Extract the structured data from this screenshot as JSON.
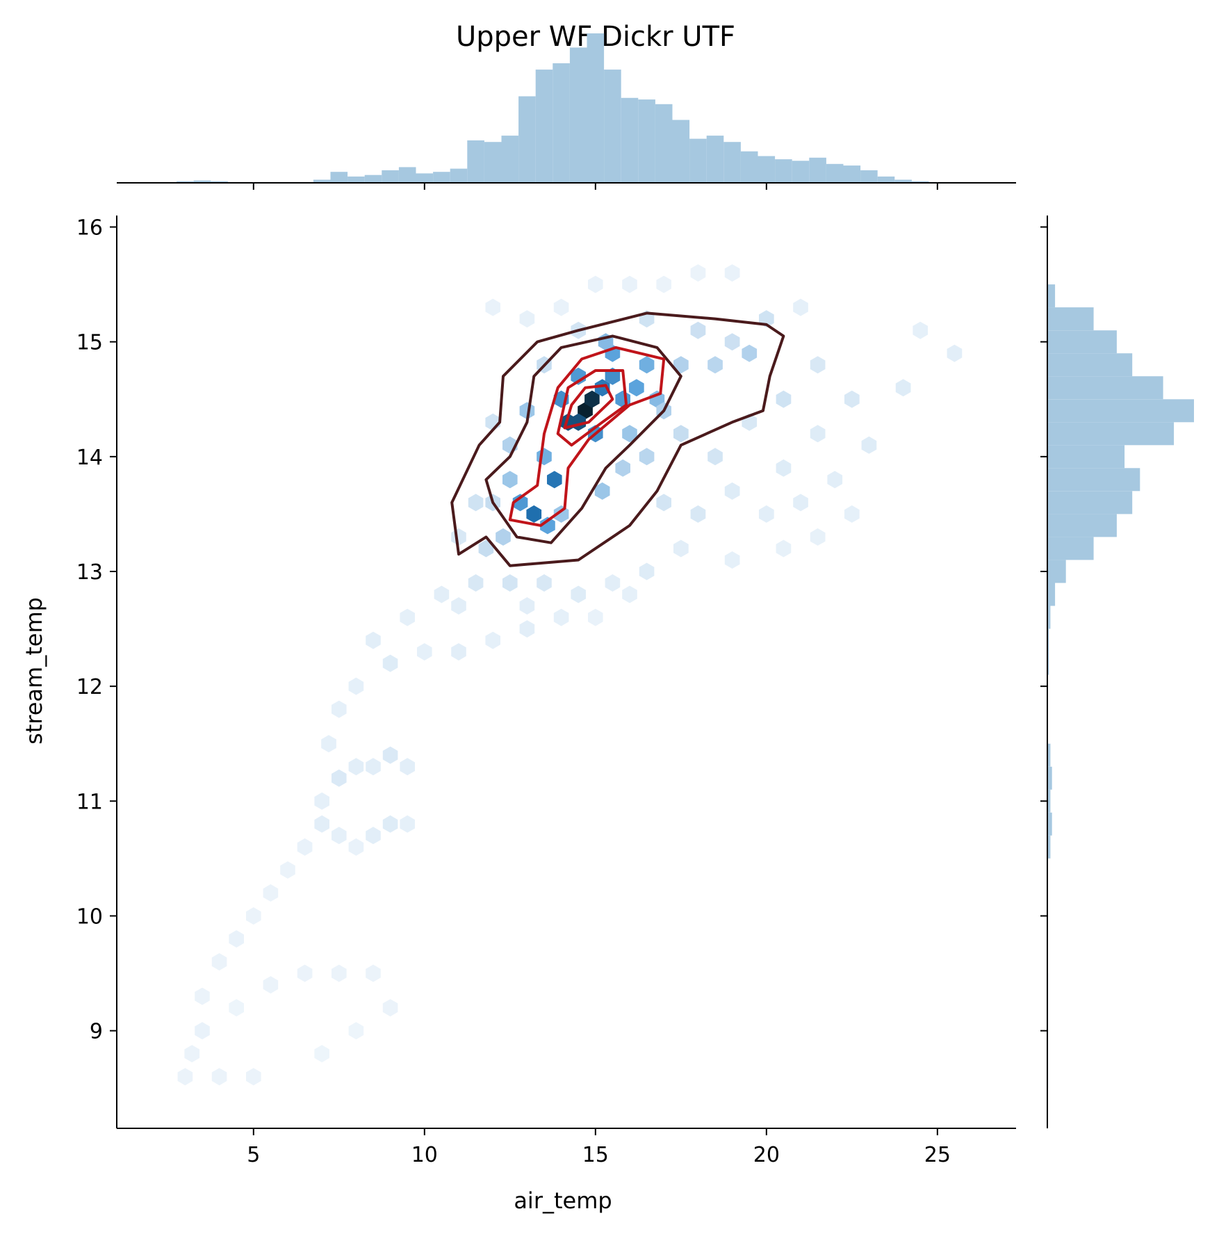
{
  "chart_data": {
    "type": "hexbin",
    "title": "Upper WF Dickr UTF",
    "xlabel": "air_temp",
    "ylabel": "stream_temp",
    "xlim": [
      1.0,
      27.3
    ],
    "ylim": [
      8.15,
      16.1
    ],
    "xticks": [
      5,
      10,
      15,
      20,
      25
    ],
    "yticks": [
      9,
      10,
      11,
      12,
      13,
      14,
      15,
      16
    ],
    "colors": {
      "hist": "#a6c8e0",
      "hex_dark": "#08212f",
      "hex_light": "#eef5fb",
      "contour_outer": "#4a1a1c",
      "contour_inner": "#c0141a"
    },
    "hexbin_cells": [
      [
        14.7,
        14.4,
        1.0
      ],
      [
        14.9,
        14.5,
        0.95
      ],
      [
        14.2,
        14.3,
        0.85
      ],
      [
        14.5,
        14.3,
        0.85
      ],
      [
        15.2,
        14.6,
        0.7
      ],
      [
        13.2,
        13.5,
        0.75
      ],
      [
        13.8,
        13.8,
        0.72
      ],
      [
        15.5,
        14.7,
        0.6
      ],
      [
        15.8,
        14.5,
        0.55
      ],
      [
        16.2,
        14.6,
        0.5
      ],
      [
        14.0,
        14.5,
        0.6
      ],
      [
        15.0,
        14.2,
        0.6
      ],
      [
        13.5,
        14.0,
        0.45
      ],
      [
        12.8,
        13.6,
        0.55
      ],
      [
        13.6,
        13.4,
        0.5
      ],
      [
        16.5,
        14.8,
        0.45
      ],
      [
        15.5,
        14.9,
        0.5
      ],
      [
        14.5,
        14.7,
        0.55
      ],
      [
        15.3,
        15.0,
        0.4
      ],
      [
        16.8,
        14.5,
        0.4
      ],
      [
        14.0,
        13.5,
        0.35
      ],
      [
        12.5,
        13.8,
        0.35
      ],
      [
        12.3,
        13.3,
        0.3
      ],
      [
        11.8,
        13.2,
        0.25
      ],
      [
        12.0,
        13.6,
        0.25
      ],
      [
        16.0,
        14.2,
        0.35
      ],
      [
        17.0,
        14.4,
        0.3
      ],
      [
        18.5,
        14.8,
        0.28
      ],
      [
        19.5,
        14.9,
        0.3
      ],
      [
        20.5,
        14.5,
        0.2
      ],
      [
        15.8,
        13.9,
        0.3
      ],
      [
        15.2,
        13.7,
        0.35
      ],
      [
        16.5,
        14.0,
        0.28
      ],
      [
        17.5,
        14.2,
        0.25
      ],
      [
        17.5,
        14.8,
        0.3
      ],
      [
        18.0,
        15.1,
        0.22
      ],
      [
        19.0,
        15.0,
        0.22
      ],
      [
        20.0,
        15.2,
        0.2
      ],
      [
        21.5,
        14.8,
        0.15
      ],
      [
        22.5,
        14.5,
        0.15
      ],
      [
        23.0,
        14.1,
        0.12
      ],
      [
        24.0,
        14.6,
        0.12
      ],
      [
        25.5,
        14.9,
        0.1
      ],
      [
        24.5,
        15.1,
        0.08
      ],
      [
        21.0,
        15.3,
        0.08
      ],
      [
        18.5,
        14.0,
        0.18
      ],
      [
        19.5,
        14.3,
        0.15
      ],
      [
        20.5,
        13.9,
        0.12
      ],
      [
        21.5,
        14.2,
        0.12
      ],
      [
        22.0,
        13.8,
        0.1
      ],
      [
        17.0,
        13.6,
        0.18
      ],
      [
        18.0,
        13.5,
        0.15
      ],
      [
        19.0,
        13.7,
        0.12
      ],
      [
        20.0,
        13.5,
        0.1
      ],
      [
        21.0,
        13.6,
        0.1
      ],
      [
        17.5,
        13.2,
        0.1
      ],
      [
        19.0,
        13.1,
        0.08
      ],
      [
        21.5,
        13.3,
        0.07
      ],
      [
        22.5,
        13.5,
        0.08
      ],
      [
        20.5,
        13.2,
        0.07
      ],
      [
        11.5,
        12.9,
        0.15
      ],
      [
        12.5,
        12.9,
        0.18
      ],
      [
        13.5,
        12.9,
        0.15
      ],
      [
        14.5,
        12.8,
        0.12
      ],
      [
        15.5,
        12.9,
        0.1
      ],
      [
        10.5,
        12.8,
        0.1
      ],
      [
        11.0,
        12.7,
        0.1
      ],
      [
        13.0,
        12.7,
        0.1
      ],
      [
        16.0,
        12.8,
        0.08
      ],
      [
        16.5,
        13.0,
        0.12
      ],
      [
        9.5,
        12.6,
        0.08
      ],
      [
        8.5,
        12.4,
        0.1
      ],
      [
        9.0,
        12.2,
        0.12
      ],
      [
        10.0,
        12.3,
        0.08
      ],
      [
        11.0,
        12.3,
        0.1
      ],
      [
        13.0,
        12.5,
        0.1
      ],
      [
        14.0,
        12.6,
        0.08
      ],
      [
        12.0,
        12.4,
        0.08
      ],
      [
        15.0,
        12.6,
        0.06
      ],
      [
        8.0,
        12.0,
        0.08
      ],
      [
        7.5,
        11.8,
        0.08
      ],
      [
        7.2,
        11.5,
        0.08
      ],
      [
        7.5,
        11.2,
        0.14
      ],
      [
        8.0,
        11.3,
        0.1
      ],
      [
        8.5,
        11.3,
        0.1
      ],
      [
        9.0,
        11.4,
        0.14
      ],
      [
        9.5,
        11.3,
        0.1
      ],
      [
        7.0,
        11.0,
        0.08
      ],
      [
        7.0,
        10.8,
        0.1
      ],
      [
        7.5,
        10.7,
        0.08
      ],
      [
        8.5,
        10.7,
        0.1
      ],
      [
        9.0,
        10.8,
        0.12
      ],
      [
        9.5,
        10.8,
        0.08
      ],
      [
        6.5,
        10.6,
        0.06
      ],
      [
        8.0,
        10.6,
        0.06
      ],
      [
        6.0,
        10.4,
        0.05
      ],
      [
        5.5,
        10.2,
        0.05
      ],
      [
        5.0,
        10.0,
        0.05
      ],
      [
        4.5,
        9.8,
        0.06
      ],
      [
        4.0,
        9.6,
        0.05
      ],
      [
        3.5,
        9.3,
        0.05
      ],
      [
        3.5,
        9.0,
        0.06
      ],
      [
        3.2,
        8.8,
        0.05
      ],
      [
        3.0,
        8.6,
        0.05
      ],
      [
        4.0,
        8.6,
        0.05
      ],
      [
        5.0,
        8.6,
        0.05
      ],
      [
        4.5,
        9.2,
        0.04
      ],
      [
        5.5,
        9.4,
        0.05
      ],
      [
        6.5,
        9.5,
        0.05
      ],
      [
        7.5,
        9.5,
        0.05
      ],
      [
        8.5,
        9.5,
        0.05
      ],
      [
        9.0,
        9.2,
        0.05
      ],
      [
        7.0,
        8.8,
        0.04
      ],
      [
        8.0,
        9.0,
        0.04
      ],
      [
        12.0,
        15.3,
        0.06
      ],
      [
        13.0,
        15.2,
        0.07
      ],
      [
        14.0,
        15.3,
        0.06
      ],
      [
        15.0,
        15.5,
        0.06
      ],
      [
        16.0,
        15.5,
        0.06
      ],
      [
        17.0,
        15.5,
        0.05
      ],
      [
        18.0,
        15.6,
        0.05
      ],
      [
        19.0,
        15.6,
        0.06
      ],
      [
        14.5,
        15.1,
        0.18
      ],
      [
        16.5,
        15.2,
        0.2
      ],
      [
        13.5,
        14.8,
        0.25
      ],
      [
        13.0,
        14.4,
        0.35
      ],
      [
        12.5,
        14.1,
        0.3
      ],
      [
        11.5,
        13.6,
        0.2
      ],
      [
        11.0,
        13.3,
        0.15
      ],
      [
        12.0,
        14.3,
        0.2
      ]
    ],
    "contours_outer": [
      [
        [
          11.8,
          13.3
        ],
        [
          11.0,
          13.15
        ],
        [
          10.8,
          13.6
        ],
        [
          11.6,
          14.1
        ],
        [
          12.2,
          14.3
        ],
        [
          12.3,
          14.7
        ],
        [
          13.3,
          15.0
        ],
        [
          14.5,
          15.1
        ],
        [
          16.5,
          15.25
        ],
        [
          18.5,
          15.2
        ],
        [
          20.0,
          15.15
        ],
        [
          20.5,
          15.05
        ],
        [
          20.1,
          14.7
        ],
        [
          19.9,
          14.4
        ],
        [
          19.0,
          14.3
        ],
        [
          17.5,
          14.1
        ],
        [
          16.8,
          13.7
        ],
        [
          16.0,
          13.4
        ],
        [
          14.5,
          13.1
        ],
        [
          12.5,
          13.05
        ],
        [
          11.8,
          13.3
        ]
      ],
      [
        [
          12.0,
          13.6
        ],
        [
          11.8,
          13.8
        ],
        [
          12.5,
          14.0
        ],
        [
          13.0,
          14.3
        ],
        [
          13.2,
          14.7
        ],
        [
          14.0,
          14.95
        ],
        [
          15.5,
          15.05
        ],
        [
          16.8,
          14.95
        ],
        [
          17.5,
          14.7
        ],
        [
          17.0,
          14.4
        ],
        [
          16.0,
          14.1
        ],
        [
          15.3,
          13.9
        ],
        [
          14.6,
          13.55
        ],
        [
          13.7,
          13.25
        ],
        [
          12.7,
          13.3
        ],
        [
          12.0,
          13.6
        ]
      ]
    ],
    "contours_inner": [
      [
        [
          12.6,
          13.6
        ],
        [
          12.5,
          13.45
        ],
        [
          13.4,
          13.4
        ],
        [
          14.1,
          13.55
        ],
        [
          14.2,
          13.9
        ],
        [
          14.8,
          14.15
        ],
        [
          16.0,
          14.45
        ],
        [
          16.9,
          14.55
        ],
        [
          17.0,
          14.85
        ],
        [
          15.6,
          14.95
        ],
        [
          14.6,
          14.85
        ],
        [
          13.9,
          14.6
        ],
        [
          13.5,
          14.2
        ],
        [
          13.3,
          13.75
        ],
        [
          12.6,
          13.6
        ]
      ],
      [
        [
          13.9,
          14.2
        ],
        [
          14.3,
          14.1
        ],
        [
          15.2,
          14.3
        ],
        [
          15.9,
          14.45
        ],
        [
          15.8,
          14.75
        ],
        [
          15.0,
          14.75
        ],
        [
          14.2,
          14.6
        ],
        [
          13.9,
          14.2
        ]
      ],
      [
        [
          14.1,
          14.25
        ],
        [
          14.8,
          14.3
        ],
        [
          15.5,
          14.5
        ],
        [
          15.3,
          14.62
        ],
        [
          14.7,
          14.6
        ],
        [
          14.3,
          14.45
        ],
        [
          14.1,
          14.25
        ]
      ]
    ],
    "marginal_x": {
      "bins": [
        2.5,
        3.0,
        3.5,
        4.0,
        4.5,
        5.0,
        5.5,
        6.0,
        6.5,
        7.0,
        7.5,
        8.0,
        8.5,
        9.0,
        9.5,
        10.0,
        10.5,
        11.0,
        11.5,
        12.0,
        12.5,
        13.0,
        13.5,
        14.0,
        14.5,
        15.0,
        15.5,
        16.0,
        16.5,
        17.0,
        17.5,
        18.0,
        18.5,
        19.0,
        19.5,
        20.0,
        20.5,
        21.0,
        21.5,
        22.0,
        22.5,
        23.0,
        23.5,
        24.0,
        24.5,
        25.0,
        25.5
      ],
      "counts": [
        0.005,
        0.01,
        0.015,
        0.01,
        0.005,
        0.005,
        0.005,
        0.005,
        0.005,
        0.02,
        0.07,
        0.04,
        0.05,
        0.08,
        0.1,
        0.06,
        0.07,
        0.09,
        0.27,
        0.26,
        0.3,
        0.55,
        0.72,
        0.76,
        0.86,
        0.95,
        0.72,
        0.54,
        0.53,
        0.5,
        0.4,
        0.28,
        0.3,
        0.26,
        0.2,
        0.17,
        0.15,
        0.14,
        0.16,
        0.12,
        0.11,
        0.08,
        0.04,
        0.02,
        0.01,
        0.005,
        0.005
      ]
    },
    "marginal_y": {
      "bins": [
        8.6,
        8.8,
        9.0,
        9.2,
        9.4,
        9.6,
        9.8,
        10.0,
        10.2,
        10.4,
        10.6,
        10.8,
        11.0,
        11.2,
        11.4,
        11.6,
        11.8,
        12.0,
        12.2,
        12.4,
        12.6,
        12.8,
        13.0,
        13.2,
        13.4,
        13.6,
        13.8,
        14.0,
        14.2,
        14.4,
        14.6,
        14.8,
        15.0,
        15.2,
        15.4
      ],
      "counts": [
        0.005,
        0.005,
        0.005,
        0.005,
        0.005,
        0.0,
        0.0,
        0.0,
        0.0,
        0.0,
        0.02,
        0.03,
        0.02,
        0.03,
        0.02,
        0.0,
        0.0,
        0.0,
        0.01,
        0.01,
        0.02,
        0.05,
        0.12,
        0.3,
        0.45,
        0.55,
        0.6,
        0.5,
        0.82,
        0.95,
        0.75,
        0.55,
        0.45,
        0.3,
        0.05
      ]
    }
  }
}
